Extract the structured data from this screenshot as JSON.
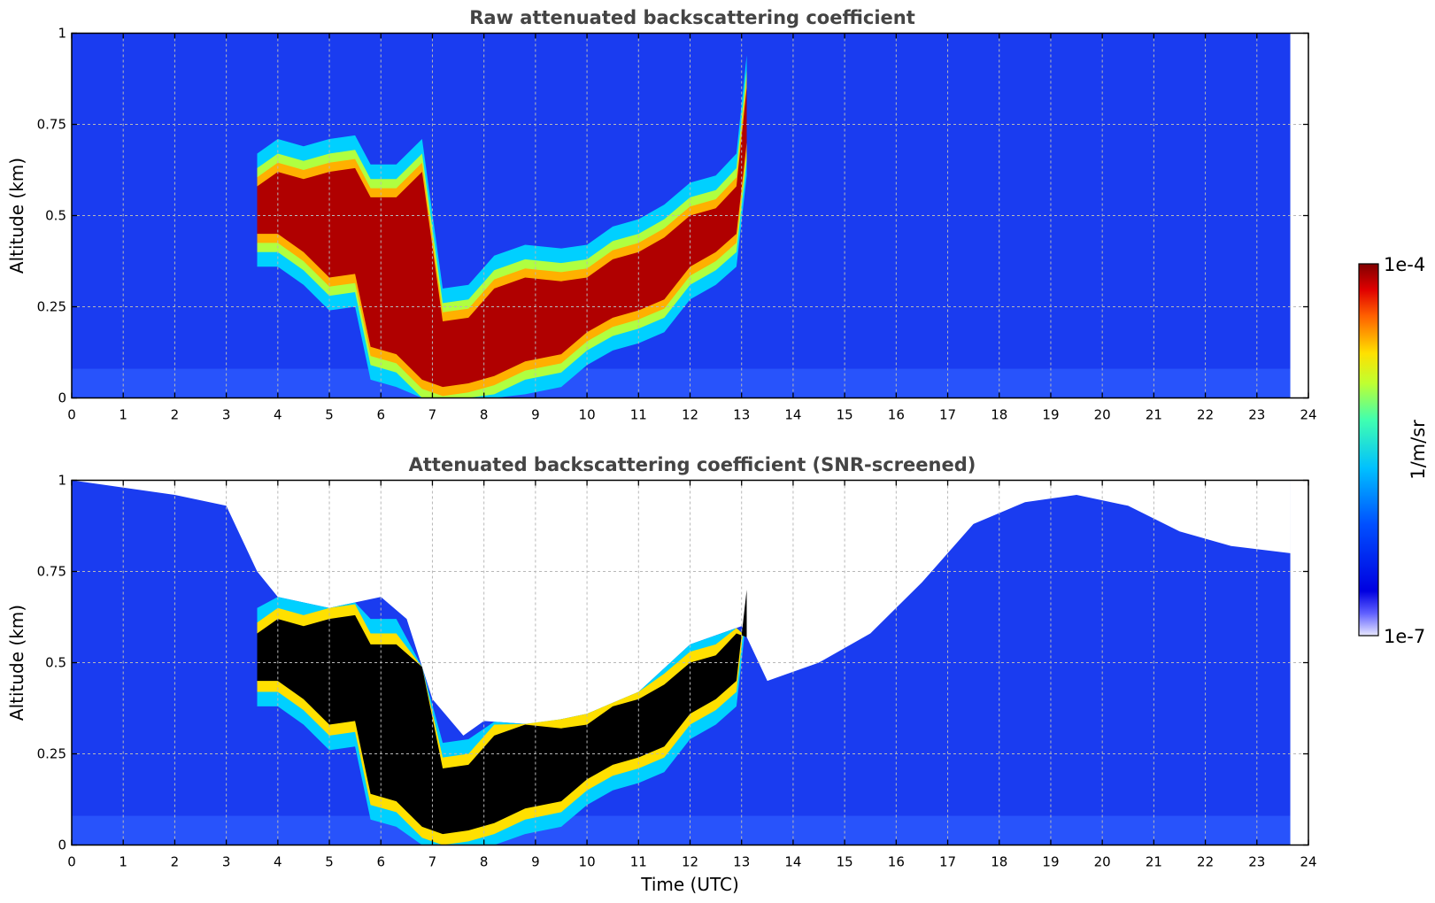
{
  "chart_data": [
    {
      "type": "heatmap",
      "title": "Raw attenuated backscattering coefficient",
      "xlabel": "",
      "ylabel": "Altitude (km)",
      "xlim": [
        0,
        24
      ],
      "ylim": [
        0,
        1
      ],
      "x_ticks": [
        "0",
        "1",
        "2",
        "3",
        "4",
        "5",
        "6",
        "7",
        "8",
        "9",
        "10",
        "11",
        "12",
        "13",
        "14",
        "15",
        "16",
        "17",
        "18",
        "19",
        "20",
        "21",
        "22",
        "23",
        "24"
      ],
      "y_ticks": [
        "0",
        "0.25",
        "0.5",
        "0.75",
        "1"
      ],
      "grid": true,
      "data_end_time": 23.65,
      "layers": [
        {
          "name": "aerosol/cloud layer",
          "points": [
            {
              "t": 3.6,
              "base": 0.45,
              "top": 0.58
            },
            {
              "t": 4.0,
              "base": 0.45,
              "top": 0.62
            },
            {
              "t": 4.5,
              "base": 0.4,
              "top": 0.6
            },
            {
              "t": 5.0,
              "base": 0.33,
              "top": 0.62
            },
            {
              "t": 5.5,
              "base": 0.34,
              "top": 0.63
            },
            {
              "t": 5.8,
              "base": 0.14,
              "top": 0.55
            },
            {
              "t": 6.3,
              "base": 0.12,
              "top": 0.55
            },
            {
              "t": 6.8,
              "base": 0.05,
              "top": 0.62
            },
            {
              "t": 7.2,
              "base": 0.03,
              "top": 0.21
            },
            {
              "t": 7.7,
              "base": 0.04,
              "top": 0.22
            },
            {
              "t": 8.2,
              "base": 0.06,
              "top": 0.3
            },
            {
              "t": 8.8,
              "base": 0.1,
              "top": 0.33
            },
            {
              "t": 9.5,
              "base": 0.12,
              "top": 0.32
            },
            {
              "t": 10.0,
              "base": 0.18,
              "top": 0.33
            },
            {
              "t": 10.5,
              "base": 0.22,
              "top": 0.38
            },
            {
              "t": 11.0,
              "base": 0.24,
              "top": 0.4
            },
            {
              "t": 11.5,
              "base": 0.27,
              "top": 0.44
            },
            {
              "t": 12.0,
              "base": 0.36,
              "top": 0.5
            },
            {
              "t": 12.5,
              "base": 0.4,
              "top": 0.52
            },
            {
              "t": 12.9,
              "base": 0.45,
              "top": 0.58
            },
            {
              "t": 13.1,
              "base": 0.7,
              "top": 0.85
            }
          ]
        }
      ]
    },
    {
      "type": "heatmap",
      "title": "Attenuated backscattering coefficient (SNR-screened)",
      "xlabel": "Time (UTC)",
      "ylabel": "Altitude (km)",
      "xlim": [
        0,
        24
      ],
      "ylim": [
        0,
        1
      ],
      "x_ticks": [
        "0",
        "1",
        "2",
        "3",
        "4",
        "5",
        "6",
        "7",
        "8",
        "9",
        "10",
        "11",
        "12",
        "13",
        "14",
        "15",
        "16",
        "17",
        "18",
        "19",
        "20",
        "21",
        "22",
        "23",
        "24"
      ],
      "y_ticks": [
        "0",
        "0.25",
        "0.5",
        "0.75",
        "1"
      ],
      "grid": true,
      "data_end_time": 23.65,
      "signal_top": [
        {
          "t": 0.0,
          "alt": 1.0
        },
        {
          "t": 1.0,
          "alt": 0.98
        },
        {
          "t": 2.0,
          "alt": 0.96
        },
        {
          "t": 3.0,
          "alt": 0.93
        },
        {
          "t": 3.6,
          "alt": 0.75
        },
        {
          "t": 4.0,
          "alt": 0.68
        },
        {
          "t": 5.0,
          "alt": 0.65
        },
        {
          "t": 6.0,
          "alt": 0.68
        },
        {
          "t": 6.5,
          "alt": 0.62
        },
        {
          "t": 7.0,
          "alt": 0.4
        },
        {
          "t": 7.6,
          "alt": 0.3
        },
        {
          "t": 8.0,
          "alt": 0.34
        },
        {
          "t": 9.0,
          "alt": 0.33
        },
        {
          "t": 10.0,
          "alt": 0.36
        },
        {
          "t": 11.0,
          "alt": 0.42
        },
        {
          "t": 12.0,
          "alt": 0.55
        },
        {
          "t": 13.0,
          "alt": 0.6
        },
        {
          "t": 13.5,
          "alt": 0.45
        },
        {
          "t": 14.5,
          "alt": 0.5
        },
        {
          "t": 15.5,
          "alt": 0.58
        },
        {
          "t": 16.5,
          "alt": 0.72
        },
        {
          "t": 17.5,
          "alt": 0.88
        },
        {
          "t": 18.5,
          "alt": 0.94
        },
        {
          "t": 19.5,
          "alt": 0.96
        },
        {
          "t": 20.5,
          "alt": 0.93
        },
        {
          "t": 21.5,
          "alt": 0.86
        },
        {
          "t": 22.5,
          "alt": 0.82
        },
        {
          "t": 23.65,
          "alt": 0.8
        }
      ]
    }
  ],
  "colorbar": {
    "label": "1/m/sr",
    "max_label": "1e-4",
    "min_label": "1e-7",
    "scale": "log",
    "range": [
      1e-07,
      0.0001
    ],
    "colormap": [
      "#e8e8ff",
      "#0000d0",
      "#0060ff",
      "#00c8ff",
      "#40ffb0",
      "#b0ff40",
      "#ffe000",
      "#ff7000",
      "#e00000",
      "#800000"
    ]
  }
}
